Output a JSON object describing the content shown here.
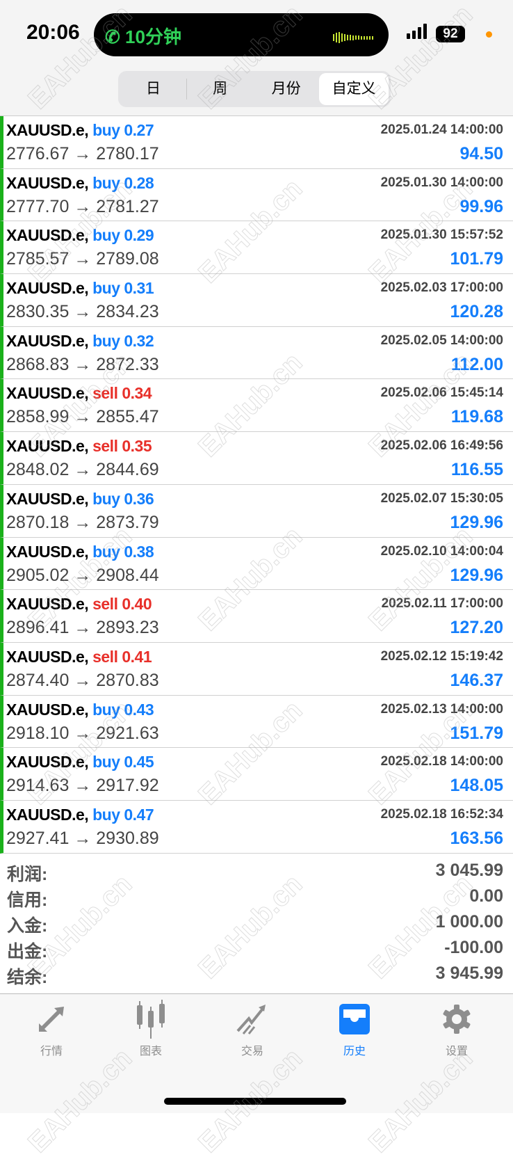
{
  "status": {
    "time": "20:06",
    "call": "10分钟",
    "battery": "92"
  },
  "segments": [
    {
      "label": "日"
    },
    {
      "label": "周"
    },
    {
      "label": "月份"
    },
    {
      "label": "自定义",
      "selected": true
    }
  ],
  "trades": [
    {
      "symbol": "XAUUSD.e,",
      "side": "buy",
      "lot": "buy 0.27",
      "date": "2025.01.24 14:00:00",
      "prices": "2776.67 → 2780.17",
      "profit": "94.50"
    },
    {
      "symbol": "XAUUSD.e,",
      "side": "buy",
      "lot": "buy 0.28",
      "date": "2025.01.30 14:00:00",
      "prices": "2777.70 → 2781.27",
      "profit": "99.96"
    },
    {
      "symbol": "XAUUSD.e,",
      "side": "buy",
      "lot": "buy 0.29",
      "date": "2025.01.30 15:57:52",
      "prices": "2785.57 → 2789.08",
      "profit": "101.79"
    },
    {
      "symbol": "XAUUSD.e,",
      "side": "buy",
      "lot": "buy 0.31",
      "date": "2025.02.03 17:00:00",
      "prices": "2830.35 → 2834.23",
      "profit": "120.28"
    },
    {
      "symbol": "XAUUSD.e,",
      "side": "buy",
      "lot": "buy 0.32",
      "date": "2025.02.05 14:00:00",
      "prices": "2868.83 → 2872.33",
      "profit": "112.00"
    },
    {
      "symbol": "XAUUSD.e,",
      "side": "sell",
      "lot": "sell 0.34",
      "date": "2025.02.06 15:45:14",
      "prices": "2858.99 → 2855.47",
      "profit": "119.68"
    },
    {
      "symbol": "XAUUSD.e,",
      "side": "sell",
      "lot": "sell 0.35",
      "date": "2025.02.06 16:49:56",
      "prices": "2848.02 → 2844.69",
      "profit": "116.55"
    },
    {
      "symbol": "XAUUSD.e,",
      "side": "buy",
      "lot": "buy 0.36",
      "date": "2025.02.07 15:30:05",
      "prices": "2870.18 → 2873.79",
      "profit": "129.96"
    },
    {
      "symbol": "XAUUSD.e,",
      "side": "buy",
      "lot": "buy 0.38",
      "date": "2025.02.10 14:00:04",
      "prices": "2905.02 → 2908.44",
      "profit": "129.96"
    },
    {
      "symbol": "XAUUSD.e,",
      "side": "sell",
      "lot": "sell 0.40",
      "date": "2025.02.11 17:00:00",
      "prices": "2896.41 → 2893.23",
      "profit": "127.20"
    },
    {
      "symbol": "XAUUSD.e,",
      "side": "sell",
      "lot": "sell 0.41",
      "date": "2025.02.12 15:19:42",
      "prices": "2874.40 → 2870.83",
      "profit": "146.37"
    },
    {
      "symbol": "XAUUSD.e,",
      "side": "buy",
      "lot": "buy 0.43",
      "date": "2025.02.13 14:00:00",
      "prices": "2918.10 → 2921.63",
      "profit": "151.79"
    },
    {
      "symbol": "XAUUSD.e,",
      "side": "buy",
      "lot": "buy 0.45",
      "date": "2025.02.18 14:00:00",
      "prices": "2914.63 → 2917.92",
      "profit": "148.05"
    },
    {
      "symbol": "XAUUSD.e,",
      "side": "buy",
      "lot": "buy 0.47",
      "date": "2025.02.18 16:52:34",
      "prices": "2927.41 → 2930.89",
      "profit": "163.56"
    }
  ],
  "summary": [
    {
      "label": "利润:",
      "value": "3 045.99"
    },
    {
      "label": "信用:",
      "value": "0.00"
    },
    {
      "label": "入金:",
      "value": "1 000.00"
    },
    {
      "label": "出金:",
      "value": "-100.00"
    },
    {
      "label": "结余:",
      "value": "3 945.99"
    }
  ],
  "tabs": [
    {
      "label": "行情",
      "icon": "quotes-icon"
    },
    {
      "label": "图表",
      "icon": "chart-icon"
    },
    {
      "label": "交易",
      "icon": "trade-icon"
    },
    {
      "label": "历史",
      "icon": "history-icon",
      "active": true
    },
    {
      "label": "设置",
      "icon": "settings-icon"
    }
  ],
  "colors": {
    "buy": "#147efb",
    "sell": "#e8302a",
    "accent": "#147efb",
    "row_marker": "#1bb11b"
  },
  "watermark": "EAHub.cn"
}
